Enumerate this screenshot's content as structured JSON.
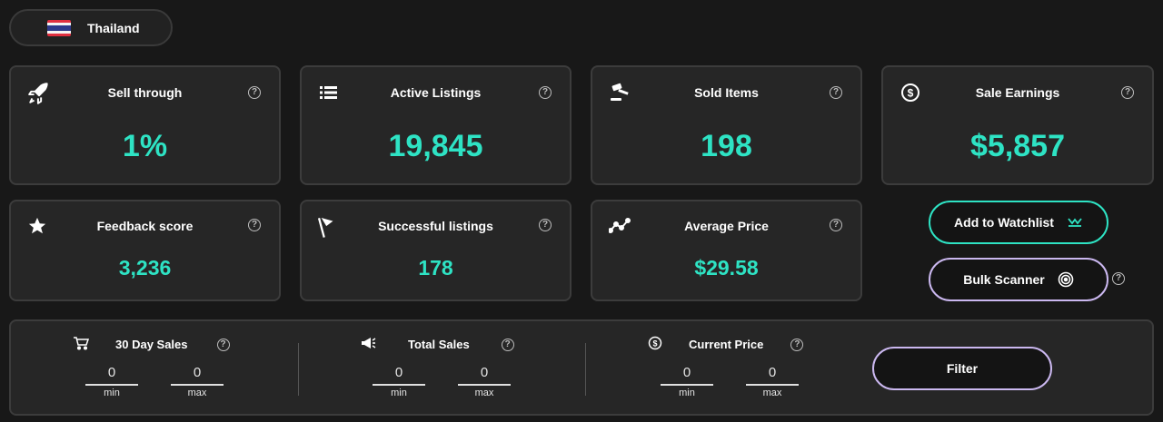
{
  "country": {
    "name": "Thailand",
    "flag_icon": "thailand-flag-icon"
  },
  "stats_row1": [
    {
      "title": "Sell through",
      "value": "1%",
      "icon": "rocket-icon"
    },
    {
      "title": "Active Listings",
      "value": "19,845",
      "icon": "list-icon"
    },
    {
      "title": "Sold Items",
      "value": "198",
      "icon": "gavel-icon"
    },
    {
      "title": "Sale Earnings",
      "value": "$5,857",
      "icon": "dollar-circle-icon"
    }
  ],
  "stats_row2": [
    {
      "title": "Feedback score",
      "value": "3,236",
      "icon": "star-icon"
    },
    {
      "title": "Successful listings",
      "value": "178",
      "icon": "flag-icon"
    },
    {
      "title": "Average Price",
      "value": "$29.58",
      "icon": "trend-line-icon"
    }
  ],
  "help_glyph": "?",
  "actions": {
    "watchlist_label": "Add to Watchlist",
    "bulk_label": "Bulk Scanner"
  },
  "filters": [
    {
      "title": "30 Day Sales",
      "icon": "cart-icon",
      "min_value": "0",
      "max_value": "0",
      "min_label": "min",
      "max_label": "max"
    },
    {
      "title": "Total Sales",
      "icon": "megaphone-icon",
      "min_value": "0",
      "max_value": "0",
      "min_label": "min",
      "max_label": "max"
    },
    {
      "title": "Current Price",
      "icon": "dollar-circle-icon",
      "min_value": "0",
      "max_value": "0",
      "min_label": "min",
      "max_label": "max"
    }
  ],
  "filter_button_label": "Filter",
  "colors": {
    "accent_teal": "#2ee3c4",
    "accent_lavender": "#cbb8f0",
    "card_bg": "#262626",
    "page_bg": "#181818"
  }
}
